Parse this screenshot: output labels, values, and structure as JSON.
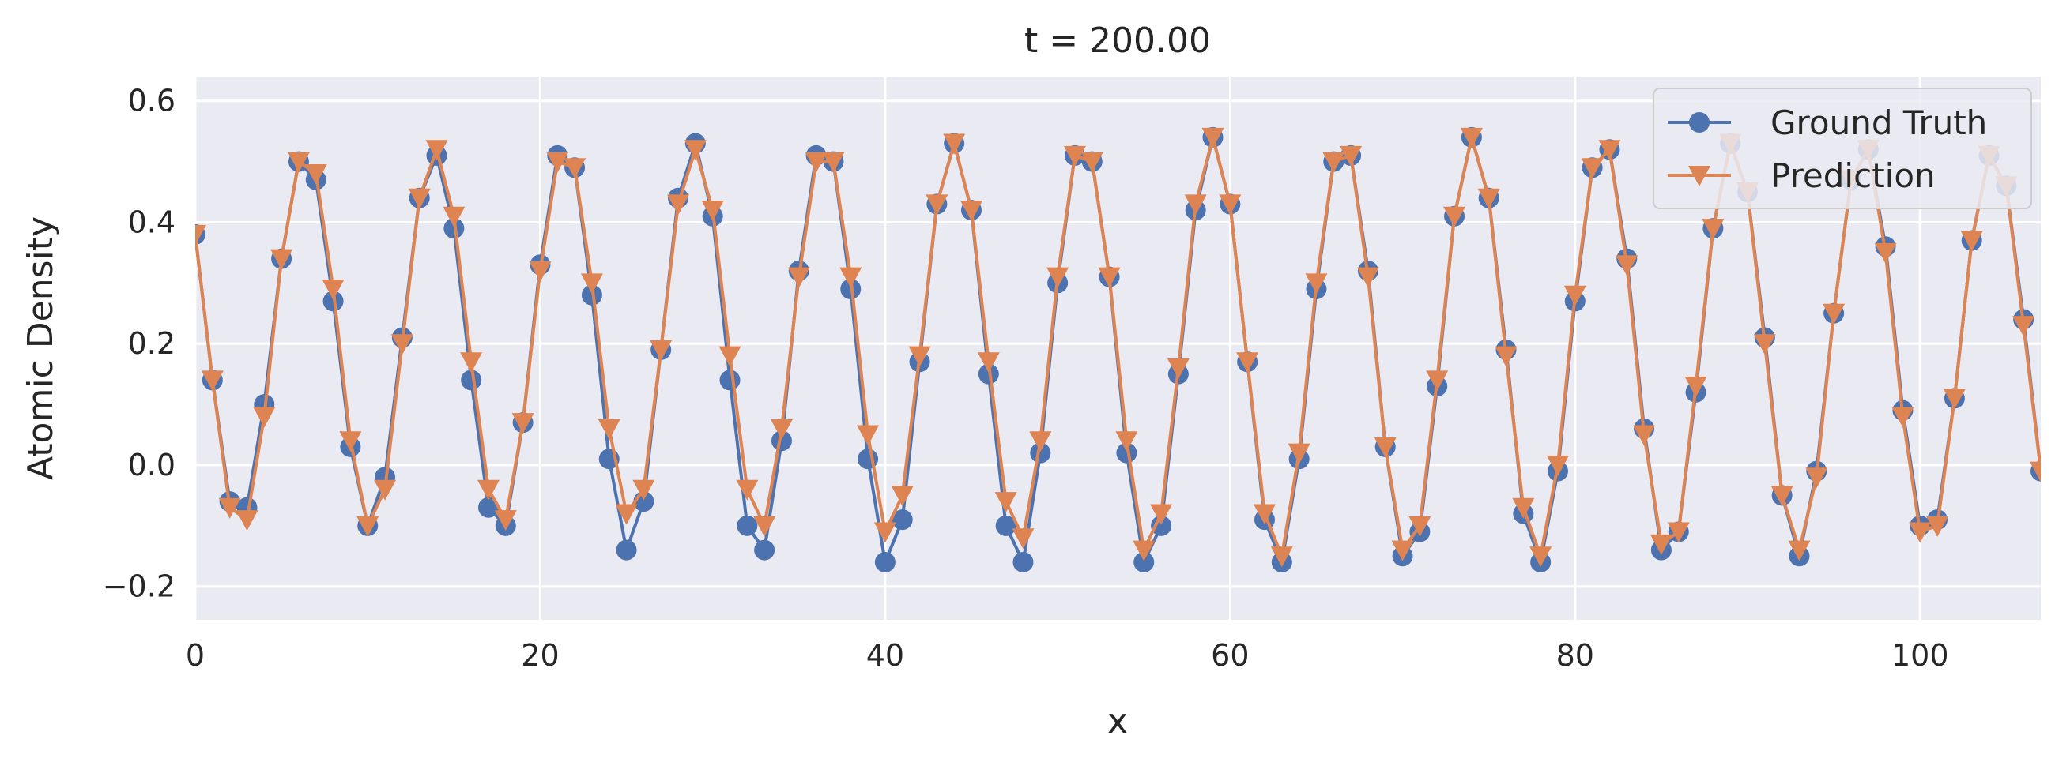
{
  "chart_data": {
    "type": "line",
    "title": "t = 200.00",
    "xlabel": "x",
    "ylabel": "Atomic Density",
    "xlim": [
      0,
      107
    ],
    "ylim": [
      -0.255,
      0.64
    ],
    "xticks": [
      0,
      20,
      40,
      60,
      80,
      100
    ],
    "yticks": [
      -0.2,
      0.0,
      0.2,
      0.4,
      0.6
    ],
    "ytick_labels": [
      "−0.2",
      "0.0",
      "0.2",
      "0.4",
      "0.6"
    ],
    "grid": true,
    "legend_position": "top-right",
    "x": [
      0,
      1,
      2,
      3,
      4,
      5,
      6,
      7,
      8,
      9,
      10,
      11,
      12,
      13,
      14,
      15,
      16,
      17,
      18,
      19,
      20,
      21,
      22,
      23,
      24,
      25,
      26,
      27,
      28,
      29,
      30,
      31,
      32,
      33,
      34,
      35,
      36,
      37,
      38,
      39,
      40,
      41,
      42,
      43,
      44,
      45,
      46,
      47,
      48,
      49,
      50,
      51,
      52,
      53,
      54,
      55,
      56,
      57,
      58,
      59,
      60,
      61,
      62,
      63,
      64,
      65,
      66,
      67,
      68,
      69,
      70,
      71,
      72,
      73,
      74,
      75,
      76,
      77,
      78,
      79,
      80,
      81,
      82,
      83,
      84,
      85,
      86,
      87,
      88,
      89,
      90,
      91,
      92,
      93,
      94,
      95,
      96,
      97,
      98,
      99,
      100,
      101,
      102,
      103,
      104,
      105,
      106,
      107
    ],
    "series": [
      {
        "name": "Ground Truth",
        "color": "#4c72b0",
        "marker": "circle",
        "values": [
          0.38,
          0.14,
          -0.06,
          -0.07,
          0.1,
          0.34,
          0.5,
          0.47,
          0.27,
          0.03,
          -0.1,
          -0.02,
          0.21,
          0.44,
          0.51,
          0.39,
          0.14,
          -0.07,
          -0.1,
          0.07,
          0.33,
          0.51,
          0.49,
          0.28,
          0.01,
          -0.14,
          -0.06,
          0.19,
          0.44,
          0.53,
          0.41,
          0.14,
          -0.1,
          -0.14,
          0.04,
          0.32,
          0.51,
          0.5,
          0.29,
          0.01,
          -0.16,
          -0.09,
          0.17,
          0.43,
          0.53,
          0.42,
          0.15,
          -0.1,
          -0.16,
          0.02,
          0.3,
          0.51,
          0.5,
          0.31,
          0.02,
          -0.16,
          -0.1,
          0.15,
          0.42,
          0.54,
          0.43,
          0.17,
          -0.09,
          -0.16,
          0.01,
          0.29,
          0.5,
          0.51,
          0.32,
          0.03,
          -0.15,
          -0.11,
          0.13,
          0.41,
          0.54,
          0.44,
          0.19,
          -0.08,
          -0.16,
          -0.01,
          0.27,
          0.49,
          0.52,
          0.34,
          0.06,
          -0.14,
          -0.11,
          0.12,
          0.39,
          0.53,
          0.45,
          0.21,
          -0.05,
          -0.15,
          -0.01,
          0.25,
          0.47,
          0.52,
          0.36,
          0.09,
          -0.1,
          -0.09,
          0.11,
          0.37,
          0.51,
          0.46,
          0.24,
          -0.01
        ]
      },
      {
        "name": "Prediction",
        "color": "#dd8452",
        "marker": "triangle-down",
        "values": [
          0.38,
          0.14,
          -0.07,
          -0.09,
          0.08,
          0.34,
          0.5,
          0.48,
          0.29,
          0.04,
          -0.1,
          -0.04,
          0.2,
          0.44,
          0.52,
          0.41,
          0.17,
          -0.04,
          -0.09,
          0.07,
          0.32,
          0.5,
          0.49,
          0.3,
          0.06,
          -0.08,
          -0.04,
          0.19,
          0.43,
          0.52,
          0.42,
          0.18,
          -0.04,
          -0.1,
          0.06,
          0.31,
          0.5,
          0.5,
          0.31,
          0.05,
          -0.11,
          -0.05,
          0.18,
          0.43,
          0.53,
          0.42,
          0.17,
          -0.06,
          -0.12,
          0.04,
          0.31,
          0.51,
          0.5,
          0.31,
          0.04,
          -0.14,
          -0.08,
          0.16,
          0.43,
          0.54,
          0.43,
          0.17,
          -0.08,
          -0.15,
          0.02,
          0.3,
          0.5,
          0.51,
          0.31,
          0.03,
          -0.14,
          -0.1,
          0.14,
          0.41,
          0.54,
          0.44,
          0.18,
          -0.07,
          -0.15,
          0.0,
          0.28,
          0.49,
          0.52,
          0.33,
          0.05,
          -0.13,
          -0.11,
          0.13,
          0.39,
          0.53,
          0.45,
          0.2,
          -0.05,
          -0.14,
          -0.02,
          0.25,
          0.47,
          0.52,
          0.35,
          0.08,
          -0.11,
          -0.1,
          0.11,
          0.37,
          0.51,
          0.46,
          0.23,
          -0.01
        ]
      }
    ]
  }
}
